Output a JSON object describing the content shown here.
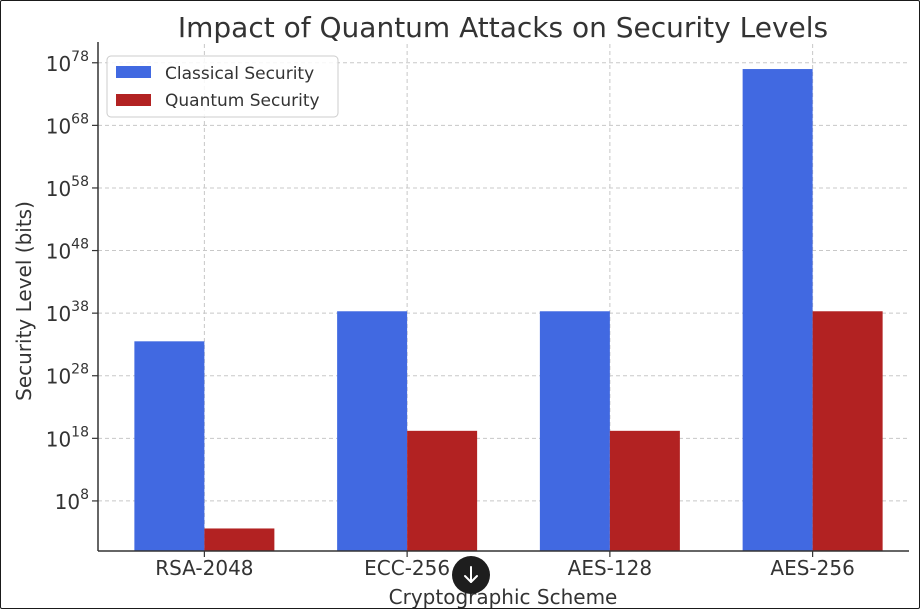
{
  "chart_data": {
    "type": "bar",
    "title": "Impact of Quantum Attacks on Security Levels",
    "xlabel": "Cryptographic Scheme",
    "ylabel": "Security Level (bits)",
    "y_scale": "log",
    "ylim_exponent": [
      0,
      81
    ],
    "categories": [
      "RSA-2048",
      "ECC-256",
      "AES-128",
      "AES-256"
    ],
    "series": [
      {
        "name": "Classical Security",
        "color": "#4169E1",
        "exponents": [
          33.5,
          38.3,
          38.3,
          77
        ]
      },
      {
        "name": "Quantum Security",
        "color": "#B22222",
        "exponents": [
          3.6,
          19.2,
          19.2,
          38.3
        ]
      }
    ],
    "y_ticks": [
      {
        "base": "10",
        "exp": "8",
        "value_exp": 8
      },
      {
        "base": "10",
        "exp": "18",
        "value_exp": 18
      },
      {
        "base": "10",
        "exp": "28",
        "value_exp": 28
      },
      {
        "base": "10",
        "exp": "38",
        "value_exp": 38
      },
      {
        "base": "10",
        "exp": "48",
        "value_exp": 48
      },
      {
        "base": "10",
        "exp": "58",
        "value_exp": 58
      },
      {
        "base": "10",
        "exp": "68",
        "value_exp": 68
      },
      {
        "base": "10",
        "exp": "78",
        "value_exp": 78
      }
    ],
    "grid": true,
    "legend_position": "top-left"
  },
  "ui": {
    "scroll_icon": "arrow-down-icon"
  }
}
